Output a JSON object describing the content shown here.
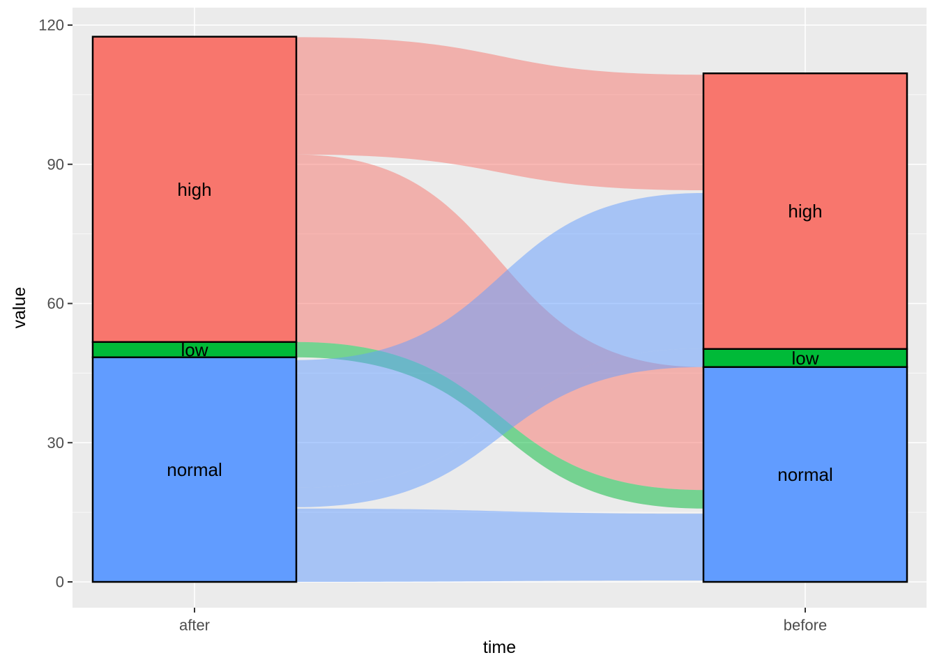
{
  "chart_data": {
    "type": "alluvial",
    "title": "",
    "xlabel": "time",
    "ylabel": "value",
    "x_categories": [
      "after",
      "before"
    ],
    "y_ticks": [
      0,
      30,
      60,
      90,
      120
    ],
    "y_minor_ticks": [
      15,
      45,
      75,
      105
    ],
    "ylim": [
      -5.6,
      123.8
    ],
    "grid": "on",
    "legend": "none",
    "panel_bg": "#EBEBEB",
    "gridline_color": "#FFFFFF",
    "tick_label_color": "#4D4D4D",
    "axis_title_color": "#000000",
    "tick_mark_color": "#333333",
    "stratum_border_color": "#000000",
    "flow_opacity": 0.5,
    "category_colors": {
      "high": "#F8766D",
      "low": "#00BA38",
      "normal": "#619CFF"
    },
    "strata": {
      "after": [
        {
          "name": "high",
          "value_from": 51.7,
          "value_to": 117.5
        },
        {
          "name": "low",
          "value_from": 48.4,
          "value_to": 51.7
        },
        {
          "name": "normal",
          "value_from": 0,
          "value_to": 48.4
        }
      ],
      "before": [
        {
          "name": "high",
          "value_from": 50.2,
          "value_to": 109.6
        },
        {
          "name": "low",
          "value_from": 46.3,
          "value_to": 50.2
        },
        {
          "name": "normal",
          "value_from": 0,
          "value_to": 46.3
        }
      ]
    },
    "totals": {
      "after": 117.5,
      "before": 109.6
    },
    "flows": [
      {
        "from": "high",
        "to": "high",
        "color_by": "high",
        "after_span": [
          92.1,
          117.4
        ],
        "before_span": [
          84.4,
          109.3
        ]
      },
      {
        "from": "high",
        "to": "normal",
        "color_by": "high",
        "after_span": [
          51.7,
          92.1
        ],
        "before_span": [
          19.8,
          46.3
        ]
      },
      {
        "from": "low",
        "to": "normal",
        "color_by": "low",
        "after_span": [
          48.4,
          51.7
        ],
        "before_span": [
          15.8,
          19.8
        ]
      },
      {
        "from": "normal",
        "to": "high",
        "color_by": "normal",
        "after_span": [
          20.3,
          47.8
        ],
        "before_span": [
          50.3,
          83.8
        ]
      },
      {
        "from": "normal",
        "to": "low",
        "color_by": "normal",
        "after_span": [
          16.1,
          20.3
        ],
        "before_span": [
          46.3,
          50.3
        ]
      },
      {
        "from": "normal",
        "to": "normal",
        "color_by": "normal",
        "after_span": [
          0,
          15.8
        ],
        "before_span": [
          0.3,
          14.7
        ]
      }
    ]
  }
}
